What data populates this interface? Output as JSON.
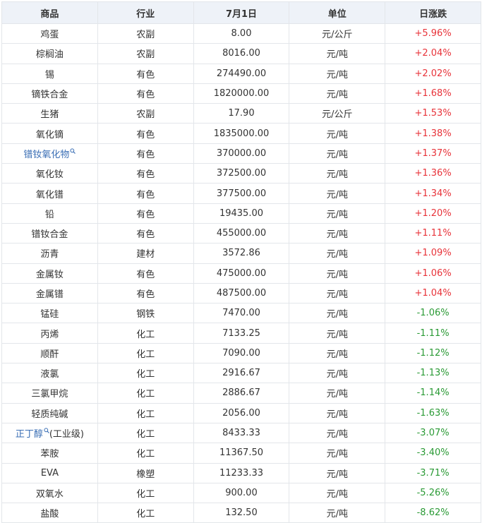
{
  "table": {
    "headers": [
      "商品",
      "行业",
      "7月1日",
      "单位",
      "日涨跌"
    ],
    "rows": [
      [
        "鸡蛋",
        "农副",
        "8.00",
        "元/公斤",
        "+5.96%"
      ],
      [
        "棕榈油",
        "农副",
        "8016.00",
        "元/吨",
        "+2.04%"
      ],
      [
        "锡",
        "有色",
        "274490.00",
        "元/吨",
        "+2.02%"
      ],
      [
        "镝铁合金",
        "有色",
        "1820000.00",
        "元/吨",
        "+1.68%"
      ],
      [
        "生猪",
        "农副",
        "17.90",
        "元/公斤",
        "+1.53%"
      ],
      [
        "氧化镝",
        "有色",
        "1835000.00",
        "元/吨",
        "+1.38%"
      ],
      [
        {
          "link": "镨钕氧化物"
        },
        "有色",
        "370000.00",
        "元/吨",
        "+1.37%"
      ],
      [
        "氧化钕",
        "有色",
        "372500.00",
        "元/吨",
        "+1.36%"
      ],
      [
        "氧化镨",
        "有色",
        "377500.00",
        "元/吨",
        "+1.34%"
      ],
      [
        "铅",
        "有色",
        "19435.00",
        "元/吨",
        "+1.20%"
      ],
      [
        "镨钕合金",
        "有色",
        "455000.00",
        "元/吨",
        "+1.11%"
      ],
      [
        "沥青",
        "建材",
        "3572.86",
        "元/吨",
        "+1.09%"
      ],
      [
        "金属钕",
        "有色",
        "475000.00",
        "元/吨",
        "+1.06%"
      ],
      [
        "金属镨",
        "有色",
        "487500.00",
        "元/吨",
        "+1.04%"
      ],
      [
        "锰硅",
        "钢铁",
        "7470.00",
        "元/吨",
        "-1.06%"
      ],
      [
        "丙烯",
        "化工",
        "7133.25",
        "元/吨",
        "-1.11%"
      ],
      [
        "顺酐",
        "化工",
        "7090.00",
        "元/吨",
        "-1.12%"
      ],
      [
        "液氯",
        "化工",
        "2916.67",
        "元/吨",
        "-1.13%"
      ],
      [
        "三氯甲烷",
        "化工",
        "2886.67",
        "元/吨",
        "-1.14%"
      ],
      [
        "轻质纯碱",
        "化工",
        "2056.00",
        "元/吨",
        "-1.63%"
      ],
      [
        {
          "link": "正丁醇",
          "text": "(工业级)"
        },
        "化工",
        "8433.33",
        "元/吨",
        "-3.07%"
      ],
      [
        "苯胺",
        "化工",
        "11367.50",
        "元/吨",
        "-3.40%"
      ],
      [
        "EVA",
        "橡塑",
        "11233.33",
        "元/吨",
        "-3.71%"
      ],
      [
        "双氧水",
        "化工",
        "900.00",
        "元/吨",
        "-5.26%"
      ],
      [
        "盐酸",
        "化工",
        "132.50",
        "元/吨",
        "-8.62%"
      ]
    ]
  }
}
